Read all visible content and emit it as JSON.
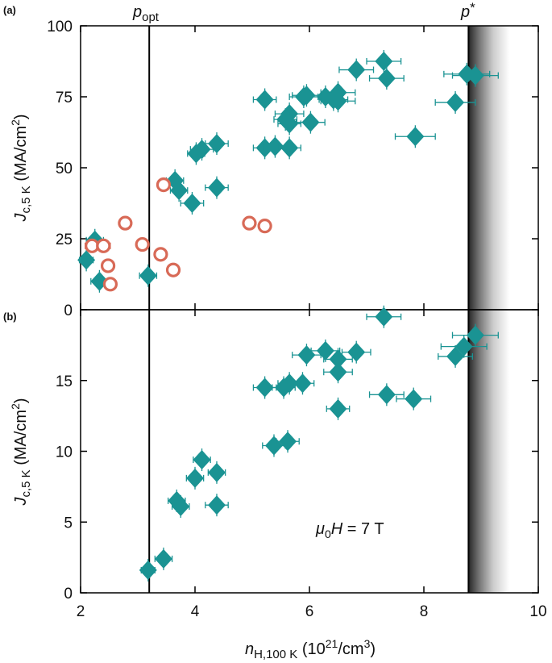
{
  "colors": {
    "teal": "#1a9393",
    "coral": "#d86a57",
    "axis": "#000000"
  },
  "labels": {
    "x_axis": {
      "n": "n",
      "sub": "H,100 K",
      "rest": " (10",
      "sup": "21",
      "tail": "/cm",
      "sup2": "3",
      "close": ")"
    },
    "y_axis_a": {
      "j": "J",
      "sub": "c,5 K",
      "rest": " (MA/cm",
      "sup": "2",
      "close": ")"
    },
    "y_axis_b": {
      "j": "J",
      "sub": "c,5 K",
      "rest": " (MA/cm",
      "sup": "2",
      "close": ")"
    },
    "p_opt": {
      "p": "p",
      "sub": "opt"
    },
    "p_star": {
      "p": "p",
      "star": "*"
    },
    "field": {
      "mu": "μ",
      "zero": "0",
      "rest": "H = 7 T"
    }
  },
  "chart_data": [
    {
      "panel": "(a)",
      "type": "scatter",
      "xlim": [
        2,
        10
      ],
      "ylim": [
        0,
        100
      ],
      "xticks": [
        2,
        4,
        6,
        8,
        10
      ],
      "yticks": [
        0,
        25,
        50,
        75,
        100
      ],
      "vlines": {
        "p_opt": 3.2,
        "p_star": 8.78
      },
      "series": [
        {
          "name": "teal-diamonds",
          "marker": "diamond",
          "points": [
            [
              2.1,
              17.5,
              0.12
            ],
            [
              2.25,
              24.5,
              0.15
            ],
            [
              2.33,
              10,
              0.15
            ],
            [
              3.18,
              12,
              0.15
            ],
            [
              3.65,
              45.5,
              0.15
            ],
            [
              3.72,
              42,
              0.15
            ],
            [
              3.95,
              37.5,
              0.2
            ],
            [
              4.02,
              55,
              0.15
            ],
            [
              4.12,
              56.5,
              0.2
            ],
            [
              4.38,
              58.5,
              0.2
            ],
            [
              4.38,
              43,
              0.2
            ],
            [
              5.22,
              74,
              0.2
            ],
            [
              5.22,
              57,
              0.2
            ],
            [
              5.4,
              57.5,
              0.2
            ],
            [
              5.65,
              57,
              0.2
            ],
            [
              5.58,
              67,
              0.2
            ],
            [
              5.65,
              69,
              0.25
            ],
            [
              5.65,
              65.5,
              0.2
            ],
            [
              5.9,
              75,
              0.25
            ],
            [
              5.95,
              75.5,
              0.25
            ],
            [
              6.02,
              66,
              0.25
            ],
            [
              6.28,
              75,
              0.25
            ],
            [
              6.42,
              74,
              0.25
            ],
            [
              6.5,
              76.5,
              0.3
            ],
            [
              6.5,
              73.5,
              0.3
            ],
            [
              6.82,
              84.5,
              0.3
            ],
            [
              7.3,
              87.5,
              0.3
            ],
            [
              7.35,
              81.5,
              0.3
            ],
            [
              7.85,
              61,
              0.35
            ],
            [
              8.55,
              73,
              0.35
            ],
            [
              8.75,
              83,
              0.4
            ],
            [
              8.9,
              82.5,
              0.4
            ]
          ]
        },
        {
          "name": "coral-circles",
          "marker": "circle",
          "points": [
            [
              2.2,
              22.5,
              0.12
            ],
            [
              2.4,
              22.5,
              0.12
            ],
            [
              2.48,
              15.5,
              0.1
            ],
            [
              2.52,
              9,
              0.1
            ],
            [
              2.78,
              30.5,
              0.1
            ],
            [
              3.08,
              23,
              0.1
            ],
            [
              3.4,
              19.5,
              0.1
            ],
            [
              3.45,
              44,
              0.1
            ],
            [
              3.62,
              14,
              0.1
            ],
            [
              4.95,
              30.5,
              0.1
            ],
            [
              5.22,
              29.5,
              0.1
            ]
          ]
        }
      ]
    },
    {
      "panel": "(b)",
      "type": "scatter",
      "xlim": [
        2,
        10
      ],
      "ylim": [
        0,
        20
      ],
      "xticks": [
        2,
        4,
        6,
        8,
        10
      ],
      "yticks": [
        0,
        5,
        10,
        15
      ],
      "vlines": {
        "p_opt": 3.2,
        "p_star": 8.78
      },
      "annotation": "μ0H = 7 T",
      "series": [
        {
          "name": "teal-diamonds",
          "marker": "diamond",
          "points": [
            [
              3.18,
              1.6,
              0.12
            ],
            [
              3.45,
              2.4,
              0.15
            ],
            [
              3.68,
              6.5,
              0.15
            ],
            [
              3.75,
              6.1,
              0.15
            ],
            [
              4.0,
              8.1,
              0.15
            ],
            [
              4.12,
              9.4,
              0.15
            ],
            [
              4.38,
              8.5,
              0.15
            ],
            [
              4.38,
              6.2,
              0.2
            ],
            [
              5.22,
              14.5,
              0.2
            ],
            [
              5.38,
              10.4,
              0.2
            ],
            [
              5.55,
              14.5,
              0.2
            ],
            [
              5.65,
              14.8,
              0.2
            ],
            [
              5.62,
              10.7,
              0.2
            ],
            [
              5.88,
              14.8,
              0.2
            ],
            [
              5.95,
              16.8,
              0.25
            ],
            [
              6.28,
              17.1,
              0.25
            ],
            [
              6.5,
              16.5,
              0.25
            ],
            [
              6.5,
              15.6,
              0.25
            ],
            [
              6.5,
              13,
              0.2
            ],
            [
              6.82,
              17,
              0.25
            ],
            [
              7.3,
              19.5,
              0.3
            ],
            [
              7.35,
              14,
              0.3
            ],
            [
              7.82,
              13.7,
              0.3
            ],
            [
              8.55,
              16.7,
              0.3
            ],
            [
              8.7,
              17.4,
              0.4
            ],
            [
              8.9,
              18.2,
              0.4
            ]
          ]
        }
      ]
    }
  ]
}
